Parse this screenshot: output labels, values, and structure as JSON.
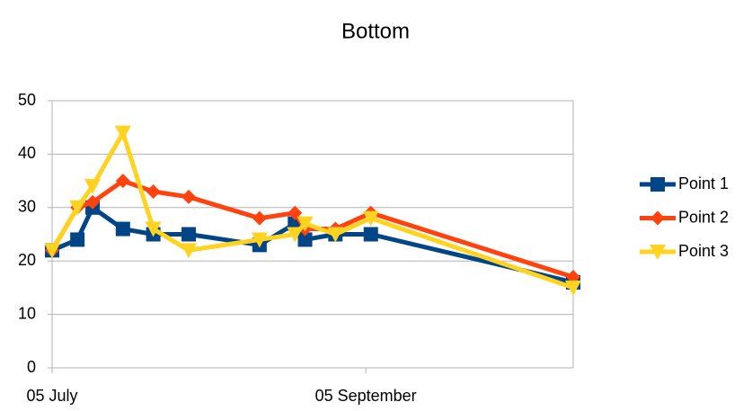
{
  "chart_data": {
    "type": "line",
    "title": "Bottom",
    "x": [
      "07-05",
      "07-10",
      "07-13",
      "07-19",
      "07-25",
      "08-01",
      "08-15",
      "08-22",
      "08-24",
      "08-30",
      "09-06",
      "10-16"
    ],
    "series": [
      {
        "name": "Point 1",
        "color": "#004586",
        "marker": "square",
        "values": [
          22,
          24,
          30,
          26,
          25,
          25,
          23,
          27,
          24,
          25,
          25,
          16
        ]
      },
      {
        "name": "Point 2",
        "color": "#ff420e",
        "marker": "diamond",
        "values": [
          22,
          30,
          31,
          35,
          33,
          32,
          28,
          29,
          26,
          26,
          29,
          17
        ]
      },
      {
        "name": "Point 3",
        "color": "#ffd320",
        "marker": "triangle-down",
        "values": [
          22,
          30,
          34,
          44,
          26,
          22,
          24,
          25,
          27,
          25,
          28,
          15
        ]
      }
    ],
    "xlim": [
      "07-05",
      "10-16"
    ],
    "xticks": [
      {
        "value": "07-05",
        "label": "05 July"
      },
      {
        "value": "09-05",
        "label": "05 September"
      }
    ],
    "ylim": [
      0,
      50
    ],
    "yticks": [
      0,
      10,
      20,
      30,
      40,
      50
    ],
    "grid": true,
    "legend": "right"
  }
}
